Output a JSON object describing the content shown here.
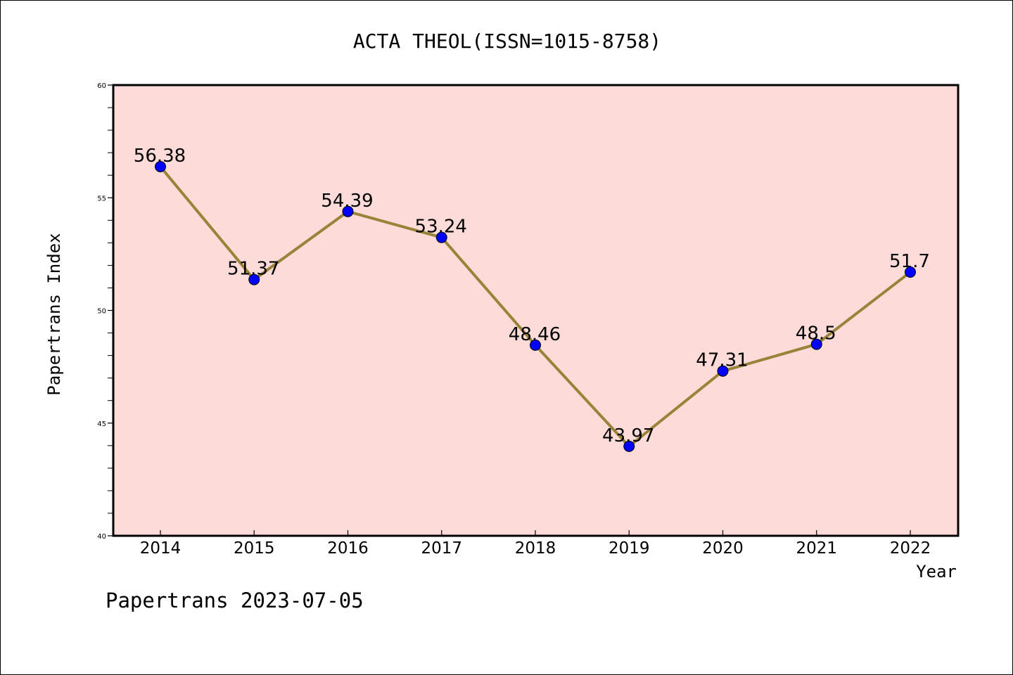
{
  "chart_data": {
    "type": "line",
    "title": "ACTA THEOL(ISSN=1015-8758)",
    "xlabel": "Year",
    "ylabel": "Papertrans Index",
    "footer": "Papertrans 2023-07-05",
    "categories": [
      "2014",
      "2015",
      "2016",
      "2017",
      "2018",
      "2019",
      "2020",
      "2021",
      "2022"
    ],
    "values": [
      56.38,
      51.37,
      54.39,
      53.24,
      48.46,
      43.97,
      47.31,
      48.5,
      51.7
    ],
    "data_labels": [
      "56.38",
      "51.37",
      "54.39",
      "53.24",
      "48.46",
      "43.97",
      "47.31",
      "48.5",
      "51.7"
    ],
    "ylim": [
      40,
      60
    ],
    "y_ticks": [
      "40",
      "45",
      "50",
      "55",
      "60"
    ],
    "grid": false,
    "colors": {
      "plot_background": "#fddbd8",
      "line": "#998339",
      "marker": "#0000ff"
    }
  }
}
